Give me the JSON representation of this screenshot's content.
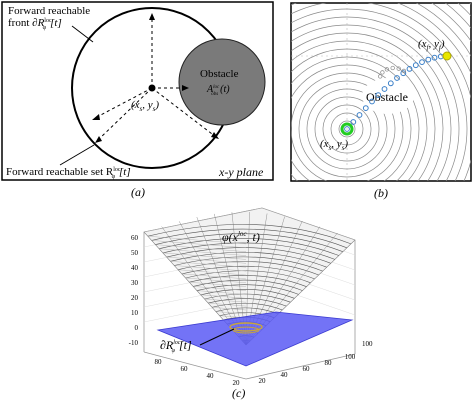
{
  "panel_a": {
    "forward_front_line1": "Forward reachable",
    "forward_front_line2": "front",
    "front_symbol": "∂R",
    "front_sup": "loc",
    "front_sub": "φ",
    "front_arg": "[t]",
    "obstacle_label": "Obstacle",
    "obstacle_symbol": "A",
    "obstacle_sup": "loc",
    "obstacle_sub": "obs",
    "obstacle_arg": "(t)",
    "start_point": "(x",
    "start_sub": "s",
    "start_mid": ", y",
    "start_end": ")",
    "reachable_set": "Forward reachable set R",
    "reachable_sup": "loc",
    "reachable_sub": "φ",
    "reachable_arg": "[t]",
    "plane_label": "x-y plane",
    "caption": "(a)"
  },
  "panel_b": {
    "goal_label": "(x",
    "goal_sub": "f",
    "goal_mid": ", y",
    "goal_end": ")",
    "obstacle_label": "Obstacle",
    "start_label": "(x",
    "start_sub": "s",
    "start_mid": ", y",
    "start_end": ")",
    "caption": "(b)",
    "colors": {
      "path": "#3a7fc8",
      "start": "#22cc22",
      "goal": "#e8e600"
    }
  },
  "panel_c": {
    "phi_label": "φ(x",
    "phi_sup": "loc",
    "phi_end": ", t)",
    "front_label": "∂R",
    "front_sup": "loc",
    "front_sub": "φ",
    "front_arg": "[t]",
    "z_ticks": [
      "60",
      "50",
      "40",
      "30",
      "20",
      "10",
      "0",
      "-10"
    ],
    "x_ticks": [
      "80",
      "60",
      "40",
      "20"
    ],
    "y_ticks": [
      "20",
      "40",
      "60",
      "80",
      "100"
    ],
    "extra_y_tick": "100",
    "caption": "(c)",
    "colors": {
      "plane": "#5a5af5"
    }
  }
}
